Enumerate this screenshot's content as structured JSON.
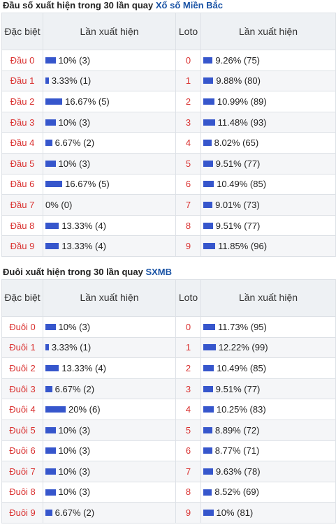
{
  "dau": {
    "title_prefix": "Đầu số xuất hiện trong 30 lần quay",
    "title_link": "Xổ số Miền Bắc",
    "headers": {
      "col1": "Đặc biệt",
      "col2": "Lần xuất hiện",
      "col3": "Loto",
      "col4": "Lần xuất hiện"
    },
    "rows": [
      {
        "label": "Đầu 0",
        "pct": 10,
        "text": "10% (3)",
        "loto": "0",
        "loto_pct": 9.26,
        "loto_text": "9.26% (75)"
      },
      {
        "label": "Đầu 1",
        "pct": 3.33,
        "text": "3.33% (1)",
        "loto": "1",
        "loto_pct": 9.88,
        "loto_text": "9.88% (80)"
      },
      {
        "label": "Đầu 2",
        "pct": 16.67,
        "text": "16.67% (5)",
        "loto": "2",
        "loto_pct": 10.99,
        "loto_text": "10.99% (89)"
      },
      {
        "label": "Đầu 3",
        "pct": 10,
        "text": "10% (3)",
        "loto": "3",
        "loto_pct": 11.48,
        "loto_text": "11.48% (93)"
      },
      {
        "label": "Đầu 4",
        "pct": 6.67,
        "text": "6.67% (2)",
        "loto": "4",
        "loto_pct": 8.02,
        "loto_text": "8.02% (65)"
      },
      {
        "label": "Đầu 5",
        "pct": 10,
        "text": "10% (3)",
        "loto": "5",
        "loto_pct": 9.51,
        "loto_text": "9.51% (77)"
      },
      {
        "label": "Đầu 6",
        "pct": 16.67,
        "text": "16.67% (5)",
        "loto": "6",
        "loto_pct": 10.49,
        "loto_text": "10.49% (85)"
      },
      {
        "label": "Đầu 7",
        "pct": 0,
        "text": "0% (0)",
        "loto": "7",
        "loto_pct": 9.01,
        "loto_text": "9.01% (73)"
      },
      {
        "label": "Đầu 8",
        "pct": 13.33,
        "text": "13.33% (4)",
        "loto": "8",
        "loto_pct": 9.51,
        "loto_text": "9.51% (77)"
      },
      {
        "label": "Đầu 9",
        "pct": 13.33,
        "text": "13.33% (4)",
        "loto": "9",
        "loto_pct": 11.85,
        "loto_text": "11.85% (96)"
      }
    ]
  },
  "duoi": {
    "title_prefix": "Đuôi xuất hiện trong 30 lần quay",
    "title_link": "SXMB",
    "headers": {
      "col1": "Đặc biệt",
      "col2": "Lần xuất hiện",
      "col3": "Loto",
      "col4": "Lần xuất hiện"
    },
    "rows": [
      {
        "label": "Đuôi 0",
        "pct": 10,
        "text": "10% (3)",
        "loto": "0",
        "loto_pct": 11.73,
        "loto_text": "11.73% (95)"
      },
      {
        "label": "Đuôi 1",
        "pct": 3.33,
        "text": "3.33% (1)",
        "loto": "1",
        "loto_pct": 12.22,
        "loto_text": "12.22% (99)"
      },
      {
        "label": "Đuôi 2",
        "pct": 13.33,
        "text": "13.33% (4)",
        "loto": "2",
        "loto_pct": 10.49,
        "loto_text": "10.49% (85)"
      },
      {
        "label": "Đuôi 3",
        "pct": 6.67,
        "text": "6.67% (2)",
        "loto": "3",
        "loto_pct": 9.51,
        "loto_text": "9.51% (77)"
      },
      {
        "label": "Đuôi 4",
        "pct": 20,
        "text": "20% (6)",
        "loto": "4",
        "loto_pct": 10.25,
        "loto_text": "10.25% (83)"
      },
      {
        "label": "Đuôi 5",
        "pct": 10,
        "text": "10% (3)",
        "loto": "5",
        "loto_pct": 8.89,
        "loto_text": "8.89% (72)"
      },
      {
        "label": "Đuôi 6",
        "pct": 10,
        "text": "10% (3)",
        "loto": "6",
        "loto_pct": 8.77,
        "loto_text": "8.77% (71)"
      },
      {
        "label": "Đuôi 7",
        "pct": 10,
        "text": "10% (3)",
        "loto": "7",
        "loto_pct": 9.63,
        "loto_text": "9.63% (78)"
      },
      {
        "label": "Đuôi 8",
        "pct": 10,
        "text": "10% (3)",
        "loto": "8",
        "loto_pct": 8.52,
        "loto_text": "8.52% (69)"
      },
      {
        "label": "Đuôi 9",
        "pct": 6.67,
        "text": "6.67% (2)",
        "loto": "9",
        "loto_pct": 10,
        "loto_text": "10% (81)"
      }
    ]
  },
  "colors": {
    "bar": "#3656cc",
    "accent_red": "#d9302f",
    "link_blue": "#1a53a5"
  }
}
